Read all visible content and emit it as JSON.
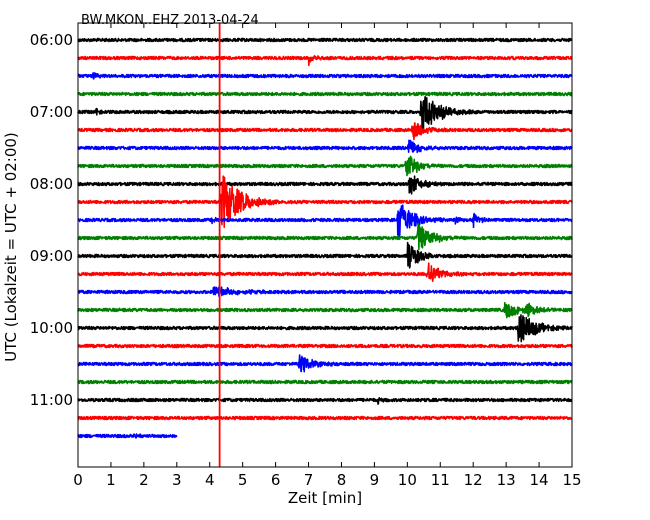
{
  "chart_data": {
    "type": "line",
    "title": "BW.MKON..EHZ 2013-04-24",
    "xlabel": "Zeit  [min]",
    "ylabel": "UTC (Lokalzeit = UTC + 02:00)",
    "xlim": [
      0,
      15
    ],
    "x_ticks": [
      "0",
      "1",
      "2",
      "3",
      "4",
      "5",
      "6",
      "7",
      "8",
      "9",
      "10",
      "11",
      "12",
      "13",
      "14",
      "15"
    ],
    "y_ticks": [
      {
        "label": "06:00",
        "trace": 0
      },
      {
        "label": "07:00",
        "trace": 4
      },
      {
        "label": "08:00",
        "trace": 8
      },
      {
        "label": "09:00",
        "trace": 12
      },
      {
        "label": "10:00",
        "trace": 16
      },
      {
        "label": "11:00",
        "trace": 20
      }
    ],
    "color_cycle": [
      "#000000",
      "#ff0000",
      "#0000ff",
      "#008000"
    ],
    "trace_interval_min": 15,
    "start_time": "06:00",
    "traces": [
      {
        "start": "06:00",
        "color": "#000000",
        "end_min": 15,
        "events": []
      },
      {
        "start": "06:15",
        "color": "#ff0000",
        "end_min": 15,
        "events": [
          {
            "t": 7.0,
            "amp": 0.45,
            "dur": 0.12
          }
        ]
      },
      {
        "start": "06:30",
        "color": "#0000ff",
        "end_min": 15,
        "events": [
          {
            "t": 0.45,
            "amp": 0.25,
            "dur": 0.1
          }
        ]
      },
      {
        "start": "06:45",
        "color": "#008000",
        "end_min": 15,
        "events": []
      },
      {
        "start": "07:00",
        "color": "#000000",
        "end_min": 15,
        "events": [
          {
            "t": 0.55,
            "amp": 0.2,
            "dur": 0.08
          },
          {
            "t": 10.4,
            "amp": 1.25,
            "dur": 0.45
          },
          {
            "t": 10.7,
            "amp": 0.5,
            "dur": 0.3
          }
        ]
      },
      {
        "start": "07:15",
        "color": "#ff0000",
        "end_min": 15,
        "events": [
          {
            "t": 10.15,
            "amp": 0.65,
            "dur": 0.3
          }
        ]
      },
      {
        "start": "07:30",
        "color": "#0000ff",
        "end_min": 15,
        "events": [
          {
            "t": 10.0,
            "amp": 0.6,
            "dur": 0.25
          }
        ]
      },
      {
        "start": "07:45",
        "color": "#008000",
        "end_min": 15,
        "events": [
          {
            "t": 9.95,
            "amp": 0.9,
            "dur": 0.3
          }
        ]
      },
      {
        "start": "08:00",
        "color": "#000000",
        "end_min": 15,
        "events": [
          {
            "t": 10.05,
            "amp": 0.7,
            "dur": 0.3
          }
        ]
      },
      {
        "start": "08:15",
        "color": "#ff0000",
        "end_min": 15,
        "events": [
          {
            "t": 4.35,
            "amp": 1.8,
            "dur": 0.5
          }
        ]
      },
      {
        "start": "08:30",
        "color": "#0000ff",
        "end_min": 15,
        "events": [
          {
            "t": 4.05,
            "amp": 0.2,
            "dur": 0.1
          },
          {
            "t": 9.7,
            "amp": 1.25,
            "dur": 0.4
          },
          {
            "t": 11.45,
            "amp": 0.2,
            "dur": 0.1
          },
          {
            "t": 12.0,
            "amp": 0.55,
            "dur": 0.15
          }
        ]
      },
      {
        "start": "08:45",
        "color": "#008000",
        "end_min": 15,
        "events": [
          {
            "t": 10.3,
            "amp": 0.9,
            "dur": 0.4
          }
        ]
      },
      {
        "start": "09:00",
        "color": "#000000",
        "end_min": 15,
        "events": [
          {
            "t": 10.0,
            "amp": 0.8,
            "dur": 0.35
          }
        ]
      },
      {
        "start": "09:15",
        "color": "#ff0000",
        "end_min": 15,
        "events": [
          {
            "t": 10.6,
            "amp": 0.7,
            "dur": 0.35
          }
        ]
      },
      {
        "start": "09:30",
        "color": "#0000ff",
        "end_min": 15,
        "events": [
          {
            "t": 4.1,
            "amp": 0.35,
            "dur": 0.6
          }
        ]
      },
      {
        "start": "09:45",
        "color": "#008000",
        "end_min": 15,
        "events": [
          {
            "t": 1.25,
            "amp": 0.2,
            "dur": 0.1
          },
          {
            "t": 12.95,
            "amp": 0.6,
            "dur": 0.35
          },
          {
            "t": 13.6,
            "amp": 0.5,
            "dur": 0.3
          }
        ]
      },
      {
        "start": "10:00",
        "color": "#000000",
        "end_min": 15,
        "events": [
          {
            "t": 13.35,
            "amp": 1.0,
            "dur": 0.45
          }
        ]
      },
      {
        "start": "10:15",
        "color": "#ff0000",
        "end_min": 15,
        "events": []
      },
      {
        "start": "10:30",
        "color": "#0000ff",
        "end_min": 15,
        "events": [
          {
            "t": 6.7,
            "amp": 0.6,
            "dur": 0.35
          }
        ]
      },
      {
        "start": "10:45",
        "color": "#008000",
        "end_min": 15,
        "events": []
      },
      {
        "start": "11:00",
        "color": "#000000",
        "end_min": 15,
        "events": [
          {
            "t": 9.1,
            "amp": 0.2,
            "dur": 0.15
          }
        ]
      },
      {
        "start": "11:15",
        "color": "#ff0000",
        "end_min": 15,
        "events": []
      },
      {
        "start": "11:30",
        "color": "#0000ff",
        "end_min": 3,
        "events": [
          {
            "t": 1.7,
            "amp": 0.15,
            "dur": 0.1
          }
        ]
      }
    ],
    "marker_line": {
      "x": 4.3,
      "color": "#ff0000"
    },
    "grid": false
  }
}
